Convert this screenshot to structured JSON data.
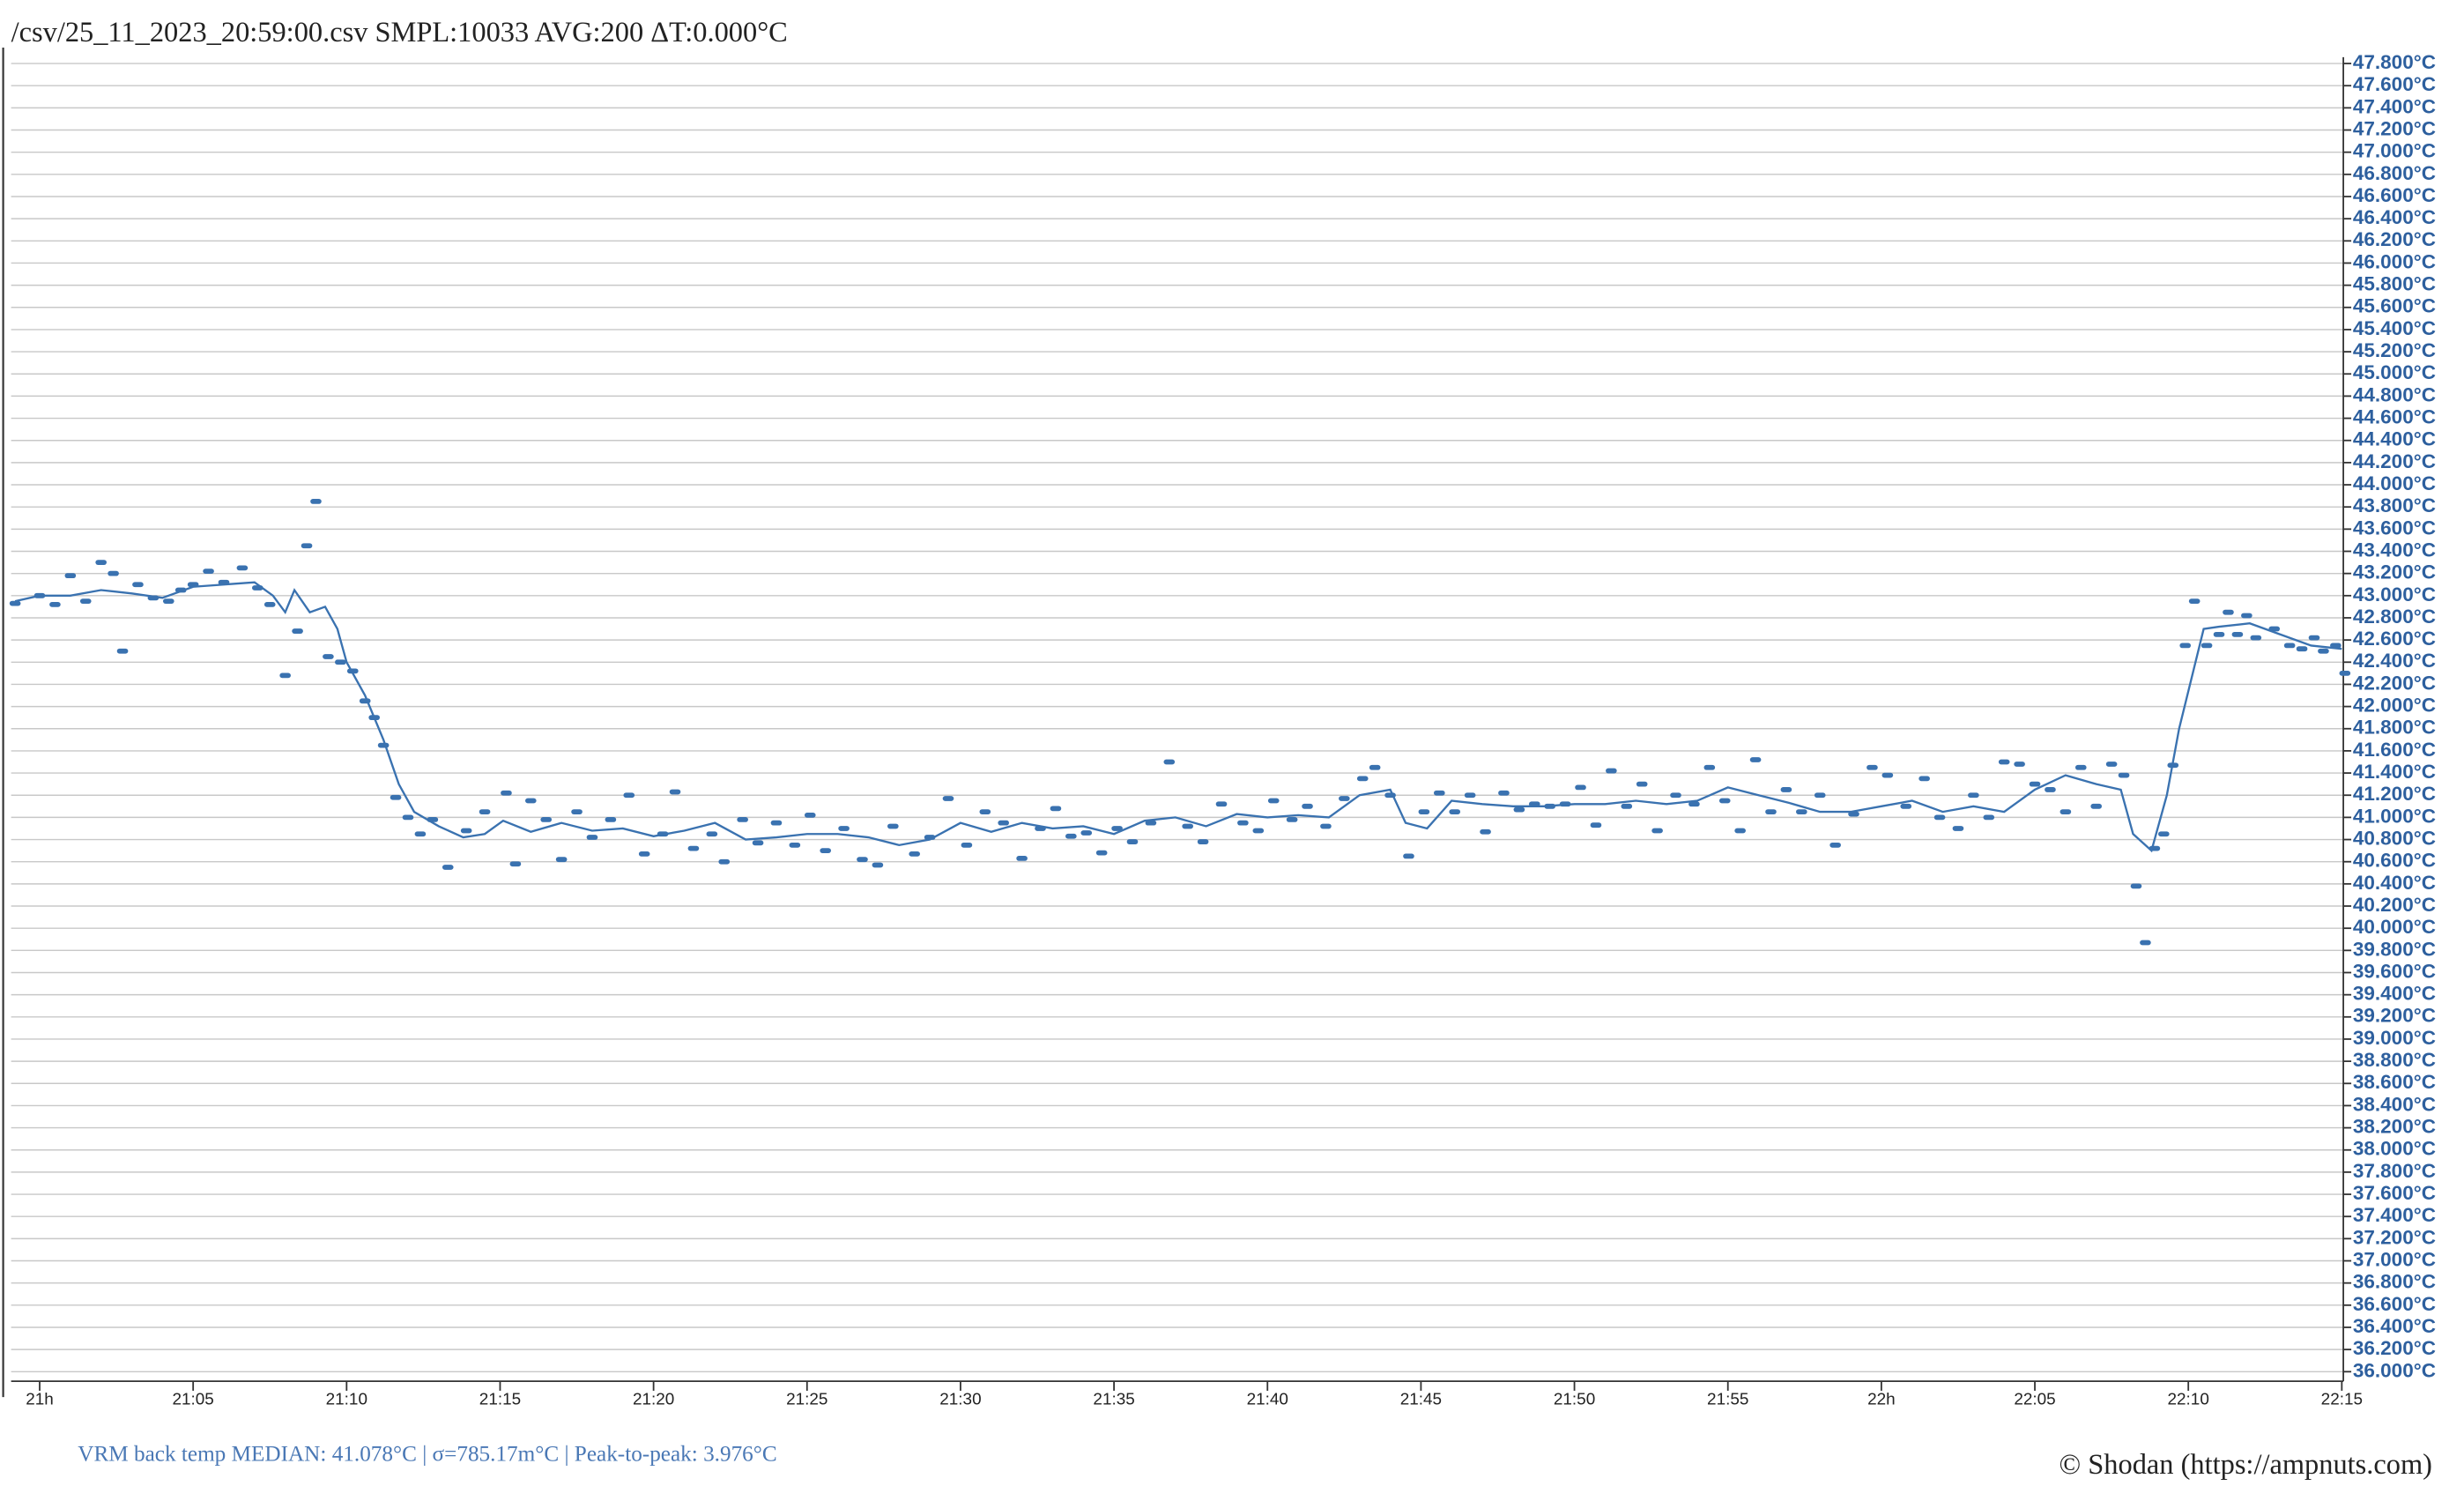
{
  "chart_data": {
    "type": "line",
    "title": "/csv/25_11_2023_20:59:00.csv SMPL:10033 AVG:200 ΔT:0.000°C",
    "footer": "VRM back temp MEDIAN: 41.078°C | σ=785.17m°C | Peak-to-peak: 3.976°C",
    "copyright": "© Shodan (https://ampnuts.com)",
    "grid": true,
    "xlim": [
      -0.93,
      75.05
    ],
    "xticks": [
      {
        "value": 0,
        "label": "21h"
      },
      {
        "value": 5,
        "label": "21:05"
      },
      {
        "value": 10,
        "label": "21:10"
      },
      {
        "value": 15,
        "label": "21:15"
      },
      {
        "value": 20,
        "label": "21:20"
      },
      {
        "value": 25,
        "label": "21:25"
      },
      {
        "value": 30,
        "label": "21:30"
      },
      {
        "value": 35,
        "label": "21:35"
      },
      {
        "value": 40,
        "label": "21:40"
      },
      {
        "value": 45,
        "label": "21:45"
      },
      {
        "value": 50,
        "label": "21:50"
      },
      {
        "value": 55,
        "label": "21:55"
      },
      {
        "value": 60,
        "label": "22h"
      },
      {
        "value": 65,
        "label": "22:05"
      },
      {
        "value": 70,
        "label": "22:10"
      },
      {
        "value": 75,
        "label": "22:15"
      }
    ],
    "ylim": [
      36.0,
      47.8
    ],
    "yticks": [
      {
        "value": 47.8,
        "label": "47.800°C"
      },
      {
        "value": 47.6,
        "label": "47.600°C"
      },
      {
        "value": 47.4,
        "label": "47.400°C"
      },
      {
        "value": 47.2,
        "label": "47.200°C"
      },
      {
        "value": 47.0,
        "label": "47.000°C"
      },
      {
        "value": 46.8,
        "label": "46.800°C"
      },
      {
        "value": 46.6,
        "label": "46.600°C"
      },
      {
        "value": 46.4,
        "label": "46.400°C"
      },
      {
        "value": 46.2,
        "label": "46.200°C"
      },
      {
        "value": 46.0,
        "label": "46.000°C"
      },
      {
        "value": 45.8,
        "label": "45.800°C"
      },
      {
        "value": 45.6,
        "label": "45.600°C"
      },
      {
        "value": 45.4,
        "label": "45.400°C"
      },
      {
        "value": 45.2,
        "label": "45.200°C"
      },
      {
        "value": 45.0,
        "label": "45.000°C"
      },
      {
        "value": 44.8,
        "label": "44.800°C"
      },
      {
        "value": 44.6,
        "label": "44.600°C"
      },
      {
        "value": 44.4,
        "label": "44.400°C"
      },
      {
        "value": 44.2,
        "label": "44.200°C"
      },
      {
        "value": 44.0,
        "label": "44.000°C"
      },
      {
        "value": 43.8,
        "label": "43.800°C"
      },
      {
        "value": 43.6,
        "label": "43.600°C"
      },
      {
        "value": 43.4,
        "label": "43.400°C"
      },
      {
        "value": 43.2,
        "label": "43.200°C"
      },
      {
        "value": 43.0,
        "label": "43.000°C"
      },
      {
        "value": 42.8,
        "label": "42.800°C"
      },
      {
        "value": 42.6,
        "label": "42.600°C"
      },
      {
        "value": 42.4,
        "label": "42.400°C"
      },
      {
        "value": 42.2,
        "label": "42.200°C"
      },
      {
        "value": 42.0,
        "label": "42.000°C"
      },
      {
        "value": 41.8,
        "label": "41.800°C"
      },
      {
        "value": 41.6,
        "label": "41.600°C"
      },
      {
        "value": 41.4,
        "label": "41.400°C"
      },
      {
        "value": 41.2,
        "label": "41.200°C"
      },
      {
        "value": 41.0,
        "label": "41.000°C"
      },
      {
        "value": 40.8,
        "label": "40.800°C"
      },
      {
        "value": 40.6,
        "label": "40.600°C"
      },
      {
        "value": 40.4,
        "label": "40.400°C"
      },
      {
        "value": 40.2,
        "label": "40.200°C"
      },
      {
        "value": 40.0,
        "label": "40.000°C"
      },
      {
        "value": 39.8,
        "label": "39.800°C"
      },
      {
        "value": 39.6,
        "label": "39.600°C"
      },
      {
        "value": 39.4,
        "label": "39.400°C"
      },
      {
        "value": 39.2,
        "label": "39.200°C"
      },
      {
        "value": 39.0,
        "label": "39.000°C"
      },
      {
        "value": 38.8,
        "label": "38.800°C"
      },
      {
        "value": 38.6,
        "label": "38.600°C"
      },
      {
        "value": 38.4,
        "label": "38.400°C"
      },
      {
        "value": 38.2,
        "label": "38.200°C"
      },
      {
        "value": 38.0,
        "label": "38.000°C"
      },
      {
        "value": 37.8,
        "label": "37.800°C"
      },
      {
        "value": 37.6,
        "label": "37.600°C"
      },
      {
        "value": 37.4,
        "label": "37.400°C"
      },
      {
        "value": 37.2,
        "label": "37.200°C"
      },
      {
        "value": 37.0,
        "label": "37.000°C"
      },
      {
        "value": 36.8,
        "label": "36.800°C"
      },
      {
        "value": 36.6,
        "label": "36.600°C"
      },
      {
        "value": 36.4,
        "label": "36.400°C"
      },
      {
        "value": 36.2,
        "label": "36.200°C"
      },
      {
        "value": 36.0,
        "label": "36.000°C"
      }
    ],
    "series": [
      {
        "type": "scatter",
        "color": "#3a72b0",
        "x": [
          -0.8,
          0,
          0.5,
          1,
          1.5,
          2,
          2.4,
          2.7,
          3.2,
          3.7,
          4.2,
          4.6,
          5,
          5.5,
          6,
          6.6,
          7.1,
          7.5,
          8,
          8.4,
          8.7,
          9,
          9.4,
          9.8,
          10.2,
          10.6,
          10.9,
          11.2,
          11.6,
          12,
          12.4,
          12.8,
          13.3,
          13.9,
          14.5,
          15.2,
          15.5,
          16,
          16.5,
          17,
          17.5,
          18,
          18.6,
          19.2,
          19.7,
          20.3,
          20.7,
          21.3,
          21.9,
          22.3,
          22.9,
          23.4,
          24,
          24.6,
          25.1,
          25.6,
          26.2,
          26.8,
          27.3,
          27.8,
          28.5,
          29,
          29.6,
          30.2,
          30.8,
          31.4,
          32,
          32.6,
          33.1,
          33.6,
          34.1,
          34.6,
          35.1,
          35.6,
          36.2,
          36.8,
          37.4,
          37.9,
          38.5,
          39.2,
          39.7,
          40.2,
          40.8,
          41.3,
          41.9,
          42.5,
          43.1,
          43.5,
          44,
          44.6,
          45.1,
          45.6,
          46.1,
          46.6,
          47.1,
          47.7,
          48.2,
          48.7,
          49.2,
          49.7,
          50.2,
          50.7,
          51.2,
          51.7,
          52.2,
          52.7,
          53.3,
          53.9,
          54.4,
          54.9,
          55.4,
          55.9,
          56.4,
          56.9,
          57.4,
          58,
          58.5,
          59.1,
          59.7,
          60.2,
          60.8,
          61.4,
          61.9,
          62.5,
          63,
          63.5,
          64,
          64.5,
          65,
          65.5,
          66,
          66.5,
          67,
          67.5,
          67.9,
          68.3,
          68.6,
          68.9,
          69.2,
          69.5,
          69.9,
          70.2,
          70.6,
          71,
          71.3,
          71.6,
          71.9,
          72.2,
          72.8,
          73.3,
          73.7,
          74.1,
          74.4,
          74.8,
          75.1
        ],
        "values": [
          42.93,
          43.0,
          42.92,
          43.18,
          42.95,
          43.3,
          43.2,
          42.5,
          43.1,
          42.98,
          42.95,
          43.05,
          43.1,
          43.22,
          43.12,
          43.25,
          43.07,
          42.92,
          42.28,
          42.68,
          43.45,
          43.85,
          42.45,
          42.4,
          42.32,
          42.05,
          41.9,
          41.65,
          41.18,
          41.0,
          40.85,
          40.98,
          40.55,
          40.88,
          41.05,
          41.22,
          40.58,
          41.15,
          40.98,
          40.62,
          41.05,
          40.82,
          40.98,
          41.2,
          40.67,
          40.85,
          41.23,
          40.72,
          40.85,
          40.6,
          40.98,
          40.77,
          40.95,
          40.75,
          41.02,
          40.7,
          40.9,
          40.62,
          40.57,
          40.92,
          40.67,
          40.82,
          41.17,
          40.75,
          41.05,
          40.95,
          40.63,
          40.9,
          41.08,
          40.83,
          40.86,
          40.68,
          40.9,
          40.78,
          40.95,
          41.5,
          40.92,
          40.78,
          41.12,
          40.95,
          40.88,
          41.15,
          40.98,
          41.1,
          40.92,
          41.17,
          41.35,
          41.45,
          41.2,
          40.65,
          41.05,
          41.22,
          41.05,
          41.2,
          40.87,
          41.22,
          41.07,
          41.12,
          41.1,
          41.12,
          41.27,
          40.93,
          41.42,
          41.1,
          41.3,
          40.88,
          41.2,
          41.12,
          41.45,
          41.15,
          40.88,
          41.52,
          41.05,
          41.25,
          41.05,
          41.2,
          40.75,
          41.03,
          41.45,
          41.38,
          41.1,
          41.35,
          41.0,
          40.9,
          41.2,
          41.0,
          41.5,
          41.48,
          41.3,
          41.25,
          41.05,
          41.45,
          41.1,
          41.48,
          41.38,
          40.38,
          39.87,
          40.72,
          40.85,
          41.47,
          42.55,
          42.95,
          42.55,
          42.65,
          42.85,
          42.65,
          42.82,
          42.62,
          42.7,
          42.55,
          42.52,
          42.62,
          42.5,
          42.55,
          42.3
        ]
      },
      {
        "type": "line",
        "color": "#3a72b0",
        "x": [
          -0.8,
          0,
          1,
          2,
          3,
          4,
          5,
          6,
          7,
          7.6,
          8,
          8.3,
          8.8,
          9.3,
          9.7,
          10,
          10.6,
          11.2,
          11.7,
          12.2,
          13,
          13.8,
          14.5,
          15.1,
          16,
          17,
          18,
          19,
          20,
          21,
          22,
          23,
          24,
          25,
          26,
          27,
          28,
          29,
          30,
          31,
          32,
          33,
          34,
          35,
          36,
          37,
          38,
          39,
          40,
          41,
          42,
          43,
          44,
          44.5,
          45.2,
          46,
          47,
          48,
          49,
          50,
          51,
          52,
          53,
          54,
          55,
          56,
          57,
          58,
          59,
          60,
          61,
          62,
          63,
          64,
          65,
          66,
          67,
          67.8,
          68.2,
          68.8,
          69.3,
          69.7,
          70.5,
          71,
          72,
          73,
          74,
          75
        ],
        "values": [
          42.95,
          43.0,
          43.0,
          43.05,
          43.02,
          42.98,
          43.08,
          43.1,
          43.12,
          43.0,
          42.85,
          43.05,
          42.85,
          42.9,
          42.7,
          42.4,
          42.1,
          41.7,
          41.3,
          41.05,
          40.92,
          40.82,
          40.85,
          40.97,
          40.87,
          40.95,
          40.88,
          40.9,
          40.83,
          40.88,
          40.95,
          40.8,
          40.82,
          40.85,
          40.85,
          40.82,
          40.75,
          40.8,
          40.95,
          40.87,
          40.95,
          40.9,
          40.92,
          40.85,
          40.97,
          41.0,
          40.92,
          41.03,
          41.0,
          41.02,
          41.0,
          41.2,
          41.25,
          40.95,
          40.9,
          41.15,
          41.12,
          41.1,
          41.1,
          41.12,
          41.12,
          41.15,
          41.12,
          41.15,
          41.27,
          41.2,
          41.13,
          41.05,
          41.05,
          41.1,
          41.15,
          41.05,
          41.1,
          41.05,
          41.25,
          41.38,
          41.3,
          41.25,
          40.85,
          40.7,
          41.2,
          41.8,
          42.7,
          42.72,
          42.75,
          42.65,
          42.55,
          42.52
        ]
      }
    ]
  }
}
